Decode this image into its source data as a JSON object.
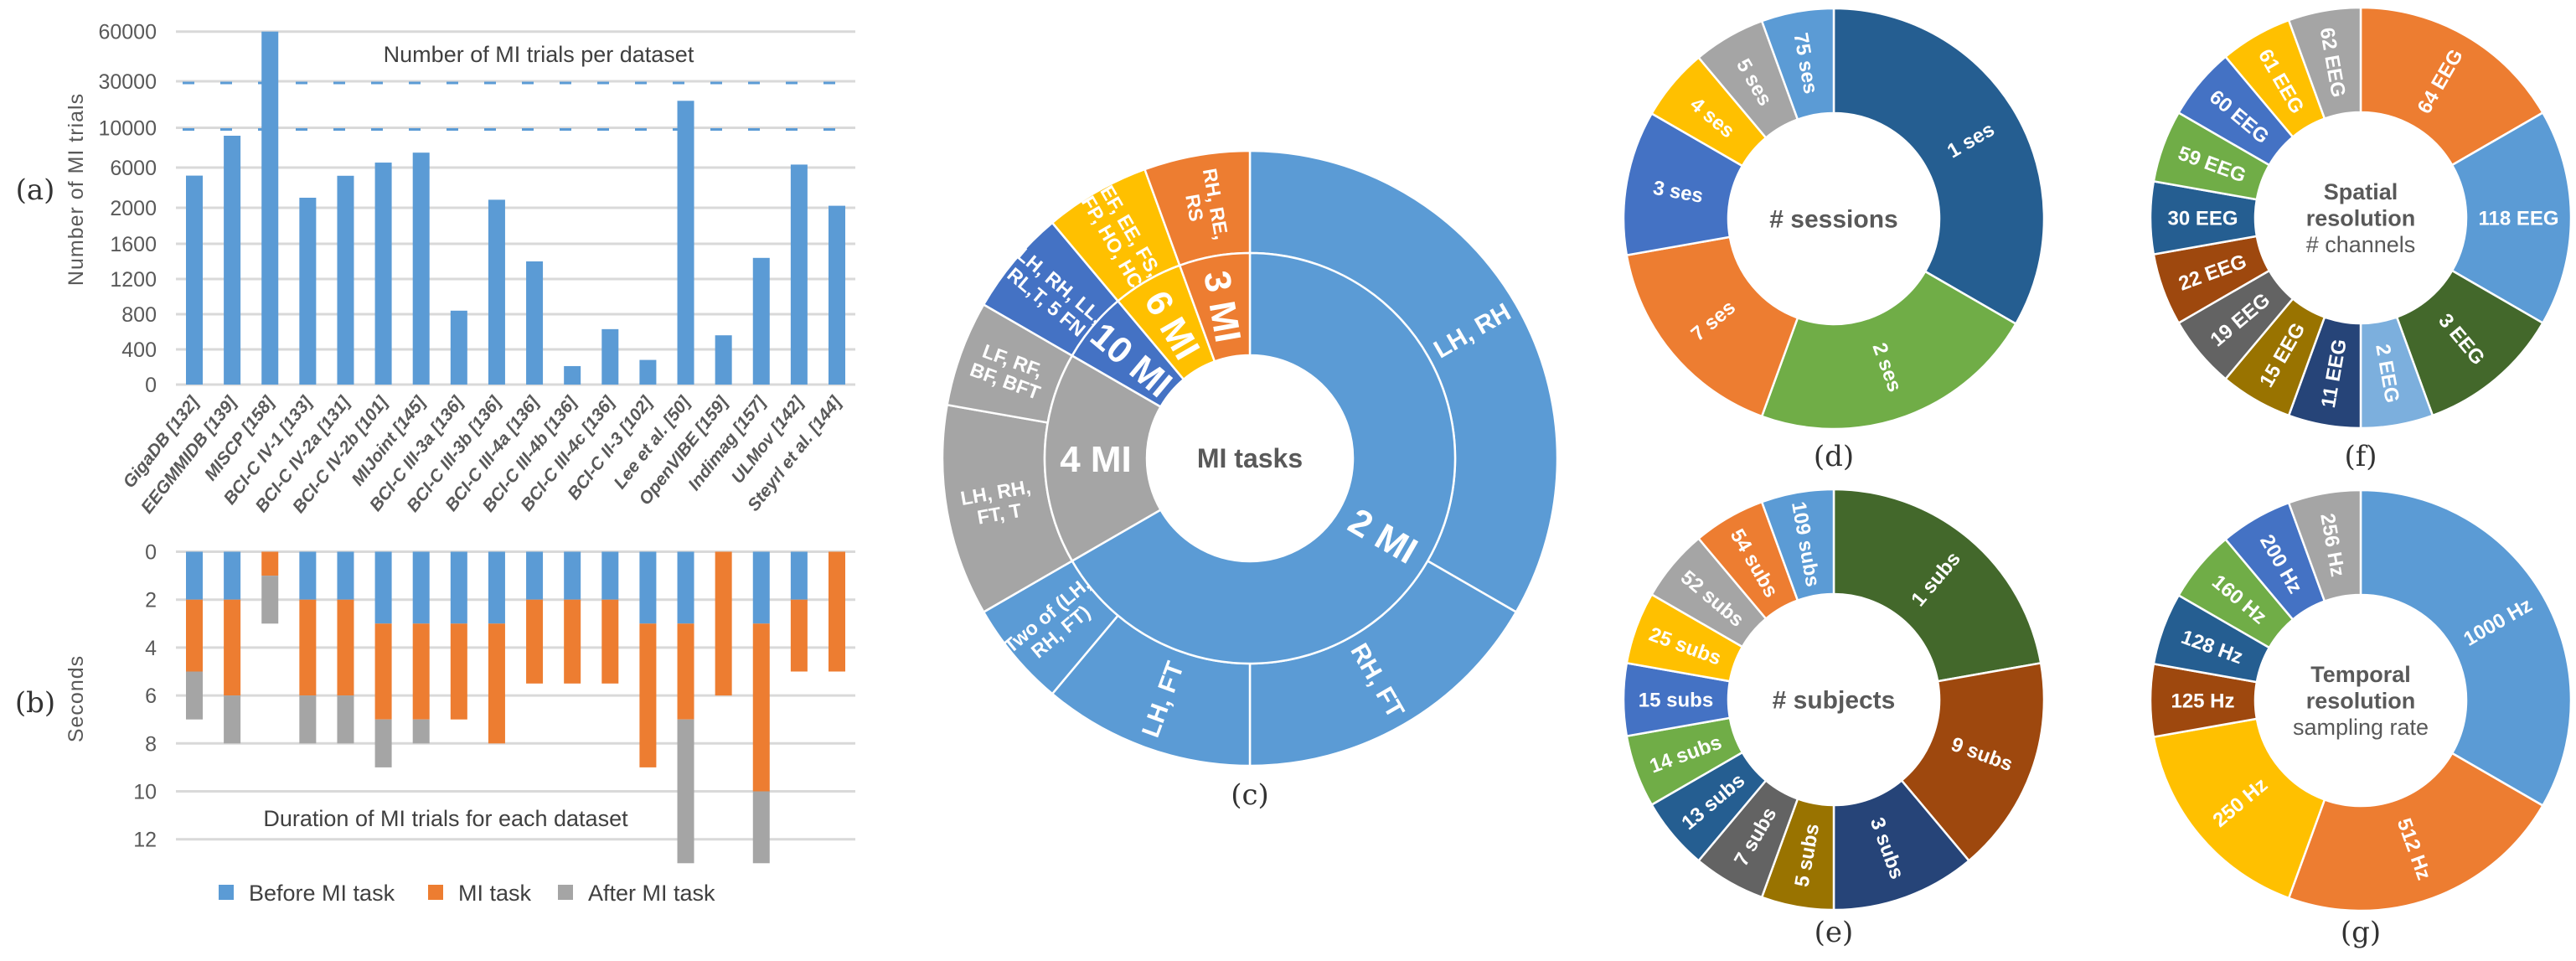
{
  "panel_labels": {
    "a": "(a)",
    "b": "(b)",
    "c": "(c)",
    "d": "(d)",
    "e": "(e)",
    "f": "(f)",
    "g": "(g)"
  },
  "chart_data": [
    {
      "type": "bar",
      "title": "Number of MI trials per dataset",
      "ylabel": "Number of MI trials",
      "yticks": [
        "0",
        "400",
        "800",
        "1200",
        "1600",
        "2000",
        "6000",
        "10000",
        "30000",
        "60000"
      ],
      "ytick_values": [
        0,
        400,
        800,
        1200,
        1600,
        2000,
        6000,
        10000,
        30000,
        60000
      ],
      "ylim": [
        0,
        60000
      ],
      "scale": "piecewise (broken axis)",
      "grid": true,
      "color": "#5B9BD5",
      "categories": [
        "GigaDB [132]",
        "EEGMMIDB [139]",
        "MISCP [158]",
        "BCI-C IV-1 [133]",
        "BCI-C IV-2a [131]",
        "BCI-C IV-2b [101]",
        "MIJoint [145]",
        "BCI-C III-3a [136]",
        "BCI-C III-3b [136]",
        "BCI-C III-4a [136]",
        "BCI-C III-4b [136]",
        "BCI-C III-4c [136]",
        "BCI-C II-3 [102]",
        "Lee et al. [50]",
        "OpenVIBE [159]",
        "Indimag [157]",
        "ULMov [142]",
        "Steyrl et al. [144]"
      ],
      "values": [
        5200,
        9200,
        60000,
        3000,
        5184,
        6500,
        7500,
        840,
        2800,
        1400,
        210,
        630,
        280,
        21600,
        560,
        1440,
        6300,
        2200
      ]
    },
    {
      "type": "bar",
      "stacked": true,
      "title": "Duration of MI trials for each dataset",
      "ylabel": "Seconds",
      "yticks": [
        "0",
        "2",
        "4",
        "6",
        "8",
        "10",
        "12"
      ],
      "ylim": [
        0,
        13
      ],
      "y_inverted": true,
      "grid": true,
      "legend": "bottom",
      "series": [
        {
          "name": "Before MI task",
          "color": "#5B9BD5",
          "values": [
            2,
            2,
            0,
            2,
            2,
            3,
            3,
            3,
            3,
            2,
            2,
            2,
            3,
            3,
            0,
            3,
            2,
            0
          ]
        },
        {
          "name": "MI task",
          "color": "#ED7D31",
          "values": [
            3,
            4,
            1,
            4,
            4,
            4,
            4,
            4,
            5,
            3.5,
            3.5,
            3.5,
            6,
            4,
            6,
            7,
            3,
            5
          ]
        },
        {
          "name": "After MI task",
          "color": "#A5A5A5",
          "values": [
            2,
            2,
            2,
            2,
            2,
            2,
            1,
            0,
            0,
            0,
            0,
            0,
            0,
            6,
            0,
            3,
            0,
            0
          ]
        }
      ]
    },
    {
      "type": "pie",
      "variant": "sunburst",
      "center_title": [
        "MI tasks"
      ],
      "inner": [
        {
          "lines": [
            "2 MI"
          ],
          "count": 12,
          "color": "#5B9BD5"
        },
        {
          "lines": [
            "4 MI"
          ],
          "count": 3,
          "color": "#A5A5A5"
        },
        {
          "lines": [
            "10 MI"
          ],
          "count": 1,
          "color": "#4472C4"
        },
        {
          "lines": [
            "6 MI"
          ],
          "count": 1,
          "color": "#FFC000"
        },
        {
          "lines": [
            "3 MI"
          ],
          "count": 1,
          "color": "#ED7D31"
        }
      ],
      "outer": [
        {
          "lines": [
            "LH, RH"
          ],
          "count": 6,
          "color": "#5B9BD5"
        },
        {
          "lines": [
            "RH, FT"
          ],
          "count": 3,
          "color": "#5B9BD5"
        },
        {
          "lines": [
            "LH, FT"
          ],
          "count": 2,
          "color": "#5B9BD5"
        },
        {
          "lines": [
            "Two of (LH,",
            "RH, FT)"
          ],
          "count": 1,
          "color": "#5B9BD5"
        },
        {
          "lines": [
            "LH, RH,",
            "FT, T"
          ],
          "count": 2,
          "color": "#A5A5A5"
        },
        {
          "lines": [
            "LF, RF,",
            "BF, BFT"
          ],
          "count": 1,
          "color": "#A5A5A5"
        },
        {
          "lines": [
            "LH, RH, LL,",
            "RL,T, 5 FN"
          ],
          "count": 1,
          "color": "#4472C4"
        },
        {
          "lines": [
            "EF, EE, FS,",
            "FP, HO, HC"
          ],
          "count": 1,
          "color": "#FFC000"
        },
        {
          "lines": [
            "RH, RE,",
            "RS"
          ],
          "count": 1,
          "color": "#ED7D31"
        }
      ]
    },
    {
      "type": "pie",
      "variant": "donut",
      "center_title": [
        "# sessions"
      ],
      "slices": [
        {
          "lines": [
            "1 ses"
          ],
          "count": 6,
          "color": "#255E91"
        },
        {
          "lines": [
            "2 ses"
          ],
          "count": 4,
          "color": "#70AD47"
        },
        {
          "lines": [
            "7 ses"
          ],
          "count": 3,
          "color": "#ED7D31"
        },
        {
          "lines": [
            "3 ses"
          ],
          "count": 2,
          "color": "#4472C4"
        },
        {
          "lines": [
            "4 ses"
          ],
          "count": 1,
          "color": "#FFC000"
        },
        {
          "lines": [
            "5 ses"
          ],
          "count": 1,
          "color": "#A5A5A5"
        },
        {
          "lines": [
            "75 ses"
          ],
          "count": 1,
          "color": "#5B9BD5"
        }
      ]
    },
    {
      "type": "pie",
      "variant": "donut",
      "center_title": [
        "# subjects"
      ],
      "slices": [
        {
          "lines": [
            "1 subs"
          ],
          "count": 4,
          "color": "#43682B"
        },
        {
          "lines": [
            "9 subs"
          ],
          "count": 3,
          "color": "#9E480E"
        },
        {
          "lines": [
            "3 subs"
          ],
          "count": 2,
          "color": "#264478"
        },
        {
          "lines": [
            "5 subs"
          ],
          "count": 1,
          "color": "#997300"
        },
        {
          "lines": [
            "7 subs"
          ],
          "count": 1,
          "color": "#636363"
        },
        {
          "lines": [
            "13 subs"
          ],
          "count": 1,
          "color": "#255E91"
        },
        {
          "lines": [
            "14 subs"
          ],
          "count": 1,
          "color": "#70AD47"
        },
        {
          "lines": [
            "15 subs"
          ],
          "count": 1,
          "color": "#4472C4"
        },
        {
          "lines": [
            "25 subs"
          ],
          "count": 1,
          "color": "#FFC000"
        },
        {
          "lines": [
            "52 subs"
          ],
          "count": 1,
          "color": "#A5A5A5"
        },
        {
          "lines": [
            "54 subs"
          ],
          "count": 1,
          "color": "#ED7D31"
        },
        {
          "lines": [
            "109 subs"
          ],
          "count": 1,
          "color": "#5B9BD5"
        }
      ]
    },
    {
      "type": "pie",
      "variant": "donut",
      "center_title": [
        "Spatial",
        "resolution"
      ],
      "center_subtitle": "# channels",
      "slices": [
        {
          "lines": [
            "64 EEG"
          ],
          "count": 3,
          "color": "#ED7D31"
        },
        {
          "lines": [
            "118 EEG"
          ],
          "count": 3,
          "color": "#5B9BD5"
        },
        {
          "lines": [
            "3 EEG"
          ],
          "count": 2,
          "color": "#43682B"
        },
        {
          "lines": [
            "2 EEG"
          ],
          "count": 1,
          "color": "#7CAFDD"
        },
        {
          "lines": [
            "11 EEG"
          ],
          "count": 1,
          "color": "#264478"
        },
        {
          "lines": [
            "15 EEG"
          ],
          "count": 1,
          "color": "#997300"
        },
        {
          "lines": [
            "19 EEG"
          ],
          "count": 1,
          "color": "#636363"
        },
        {
          "lines": [
            "22 EEG"
          ],
          "count": 1,
          "color": "#9E480E"
        },
        {
          "lines": [
            "30 EEG"
          ],
          "count": 1,
          "color": "#255E91"
        },
        {
          "lines": [
            "59 EEG"
          ],
          "count": 1,
          "color": "#70AD47"
        },
        {
          "lines": [
            "60 EEG"
          ],
          "count": 1,
          "color": "#4472C4"
        },
        {
          "lines": [
            "61 EEG"
          ],
          "count": 1,
          "color": "#FFC000"
        },
        {
          "lines": [
            "62 EEG"
          ],
          "count": 1,
          "color": "#A5A5A5"
        }
      ]
    },
    {
      "type": "pie",
      "variant": "donut",
      "center_title": [
        "Temporal",
        "resolution"
      ],
      "center_subtitle": "sampling rate",
      "slices": [
        {
          "lines": [
            "1000 Hz"
          ],
          "count": 6,
          "color": "#5B9BD5"
        },
        {
          "lines": [
            "512 Hz"
          ],
          "count": 4,
          "color": "#ED7D31"
        },
        {
          "lines": [
            "250 Hz"
          ],
          "count": 3,
          "color": "#FFC000"
        },
        {
          "lines": [
            "125 Hz"
          ],
          "count": 1,
          "color": "#9E480E"
        },
        {
          "lines": [
            "128 Hz"
          ],
          "count": 1,
          "color": "#255E91"
        },
        {
          "lines": [
            "160 Hz"
          ],
          "count": 1,
          "color": "#70AD47"
        },
        {
          "lines": [
            "200 Hz"
          ],
          "count": 1,
          "color": "#4472C4"
        },
        {
          "lines": [
            "256 Hz"
          ],
          "count": 1,
          "color": "#A5A5A5"
        }
      ]
    }
  ]
}
